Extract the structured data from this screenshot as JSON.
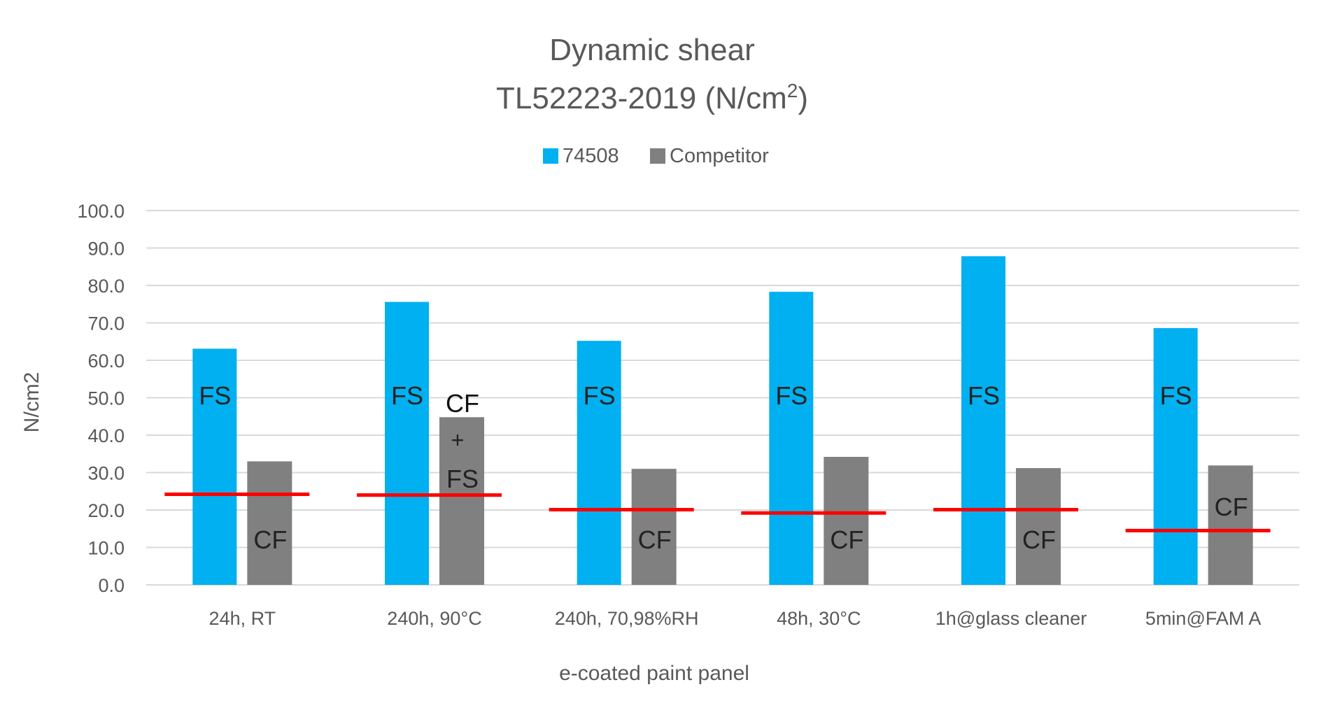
{
  "chart_data": {
    "type": "bar",
    "title_line1": "Dynamic shear",
    "title_line2_main": "TL52223-2019 (N/cm",
    "title_line2_sup": "2",
    "title_line2_end": ")",
    "xlabel": "e-coated paint panel",
    "ylabel": "N/cm2",
    "ylim": [
      0,
      100
    ],
    "yticks": [
      "0.0",
      "10.0",
      "20.0",
      "30.0",
      "40.0",
      "50.0",
      "60.0",
      "70.0",
      "80.0",
      "90.0",
      "100.0"
    ],
    "grid": true,
    "legend_position": "top",
    "categories": [
      "24h, RT",
      "240h, 90°C",
      "240h, 70,98%RH",
      "48h, 30°C",
      "1h@glass cleaner",
      "5min@FAM A"
    ],
    "series": [
      {
        "name": "74508",
        "color": "#00B0F0",
        "values": [
          63.1,
          75.6,
          65.2,
          78.3,
          87.8,
          68.6
        ],
        "annotations": [
          "FS",
          "FS",
          "FS",
          "FS",
          "FS",
          "FS"
        ]
      },
      {
        "name": "Competitor",
        "color": "#808080",
        "values": [
          33.0,
          44.8,
          31.0,
          34.2,
          31.2,
          31.9
        ],
        "annotations": [
          "CF",
          [
            "CF",
            "+",
            "FS"
          ],
          "CF",
          "CF",
          "CF",
          "CF"
        ]
      }
    ],
    "reference_lines": {
      "color": "#FF0000",
      "values": [
        24.2,
        24.0,
        20.1,
        19.2,
        20.1,
        14.5
      ]
    }
  }
}
